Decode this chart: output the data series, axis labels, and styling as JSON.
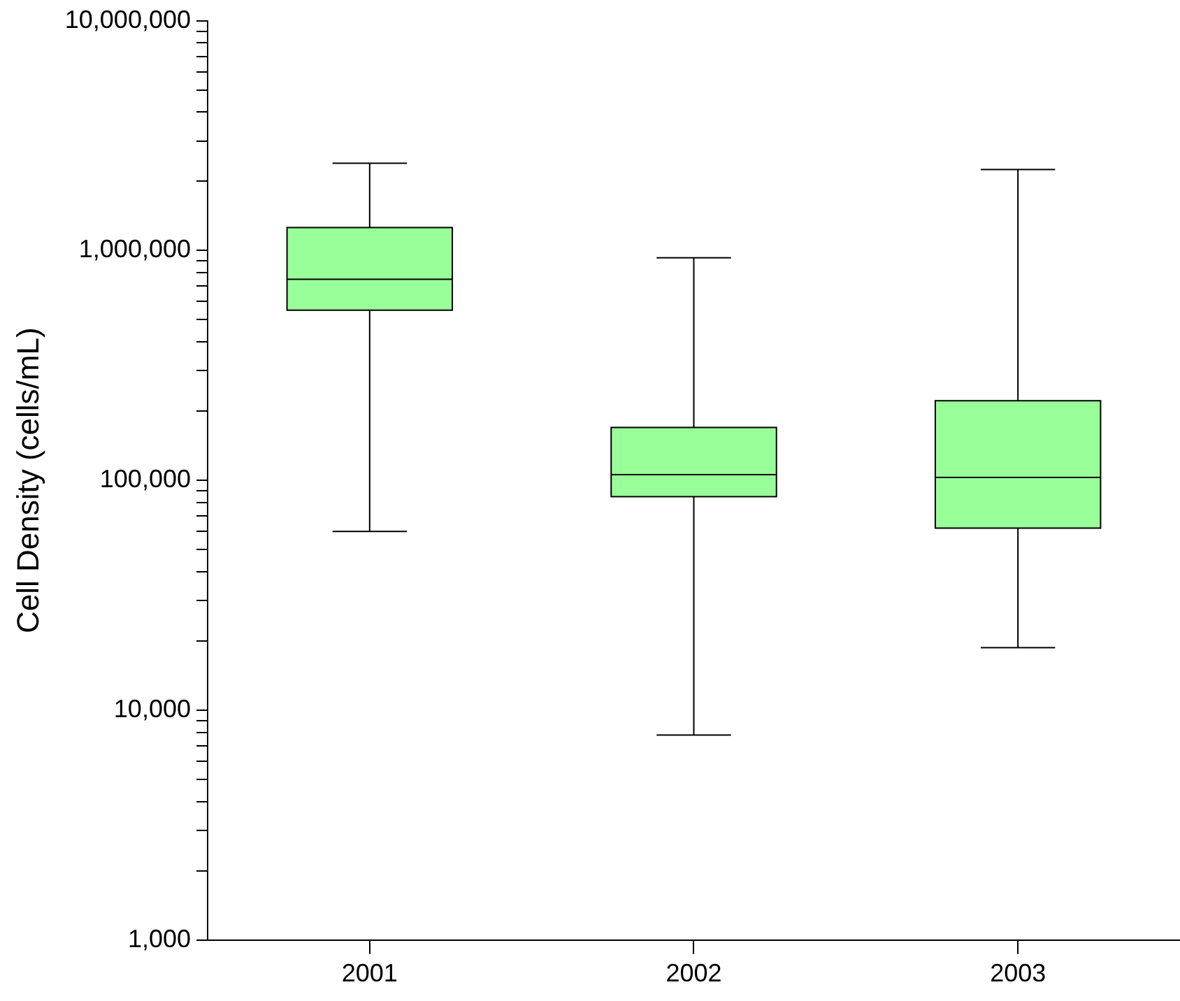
{
  "chart_data": {
    "type": "box",
    "ylabel": "Cell Density (cells/mL)",
    "categories": [
      "2001",
      "2002",
      "2003"
    ],
    "color": "#99ff99",
    "log": true,
    "ylim": [
      1000,
      10000000
    ],
    "yticks": [
      {
        "value": 1000,
        "label": "1,000"
      },
      {
        "value": 2000,
        "label": null
      },
      {
        "value": 3000,
        "label": null
      },
      {
        "value": 4000,
        "label": null
      },
      {
        "value": 5000,
        "label": null
      },
      {
        "value": 6000,
        "label": null
      },
      {
        "value": 7000,
        "label": null
      },
      {
        "value": 8000,
        "label": null
      },
      {
        "value": 9000,
        "label": null
      },
      {
        "value": 10000,
        "label": "10,000"
      },
      {
        "value": 20000,
        "label": null
      },
      {
        "value": 30000,
        "label": null
      },
      {
        "value": 40000,
        "label": null
      },
      {
        "value": 50000,
        "label": null
      },
      {
        "value": 60000,
        "label": null
      },
      {
        "value": 70000,
        "label": null
      },
      {
        "value": 80000,
        "label": null
      },
      {
        "value": 90000,
        "label": null
      },
      {
        "value": 100000,
        "label": "100,000"
      },
      {
        "value": 200000,
        "label": null
      },
      {
        "value": 300000,
        "label": null
      },
      {
        "value": 400000,
        "label": null
      },
      {
        "value": 500000,
        "label": null
      },
      {
        "value": 600000,
        "label": null
      },
      {
        "value": 700000,
        "label": null
      },
      {
        "value": 800000,
        "label": null
      },
      {
        "value": 900000,
        "label": null
      },
      {
        "value": 1000000,
        "label": "1,000,000"
      },
      {
        "value": 2000000,
        "label": null
      },
      {
        "value": 3000000,
        "label": null
      },
      {
        "value": 4000000,
        "label": null
      },
      {
        "value": 5000000,
        "label": null
      },
      {
        "value": 6000000,
        "label": null
      },
      {
        "value": 7000000,
        "label": null
      },
      {
        "value": 8000000,
        "label": null
      },
      {
        "value": 9000000,
        "label": null
      },
      {
        "value": 10000000,
        "label": "10,000,000"
      }
    ],
    "boxes": [
      {
        "low": 60000,
        "q1": 550000,
        "median": 750000,
        "q3": 1260000,
        "high": 2400000
      },
      {
        "low": 7800,
        "q1": 85000,
        "median": 106000,
        "q3": 170000,
        "high": 930000
      },
      {
        "low": 18700,
        "q1": 62000,
        "median": 103000,
        "q3": 222000,
        "high": 2250000
      }
    ]
  }
}
